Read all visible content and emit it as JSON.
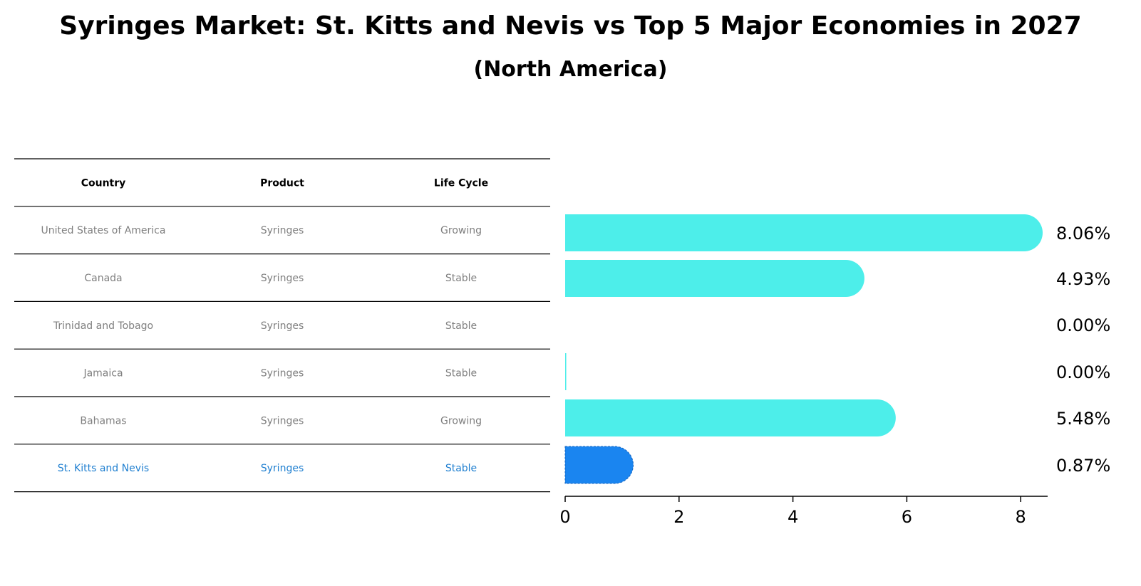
{
  "title": "Syringes Market: St. Kitts and Nevis vs Top 5 Major Economies in 2027",
  "subtitle": "(North America)",
  "table": {
    "headers": [
      "Country",
      "Product",
      "Life Cycle"
    ],
    "rows": [
      {
        "country": "United States of America",
        "product": "Syringes",
        "life_cycle": "Growing",
        "highlight": false
      },
      {
        "country": "Canada",
        "product": "Syringes",
        "life_cycle": "Stable",
        "highlight": false
      },
      {
        "country": "Trinidad and Tobago",
        "product": "Syringes",
        "life_cycle": "Stable",
        "highlight": false
      },
      {
        "country": "Jamaica",
        "product": "Syringes",
        "life_cycle": "Stable",
        "highlight": false
      },
      {
        "country": "Bahamas",
        "product": "Syringes",
        "life_cycle": "Growing",
        "highlight": false
      },
      {
        "country": "St. Kitts and Nevis",
        "product": "Syringes",
        "life_cycle": "Stable",
        "highlight": true
      }
    ]
  },
  "colors": {
    "bar": "#4DEEEA",
    "highlight_bar": "#1A85F0",
    "row_text": "#7f7f7f",
    "highlight_text": "#1f7fd0",
    "rule": "#000000"
  },
  "chart_data": {
    "type": "bar",
    "orientation": "horizontal",
    "categories": [
      "United States of America",
      "Canada",
      "Trinidad and Tobago",
      "Jamaica",
      "Bahamas",
      "St. Kitts and Nevis"
    ],
    "values": [
      8.06,
      4.93,
      0.0,
      0.0,
      5.48,
      0.87
    ],
    "value_labels": [
      "8.06%",
      "4.93%",
      "0.00%",
      "0.00%",
      "5.48%",
      "0.87%"
    ],
    "highlight_index": 5,
    "xlim": [
      0,
      8.5
    ],
    "xticks": [
      0,
      2,
      4,
      6,
      8
    ],
    "grid": false
  }
}
